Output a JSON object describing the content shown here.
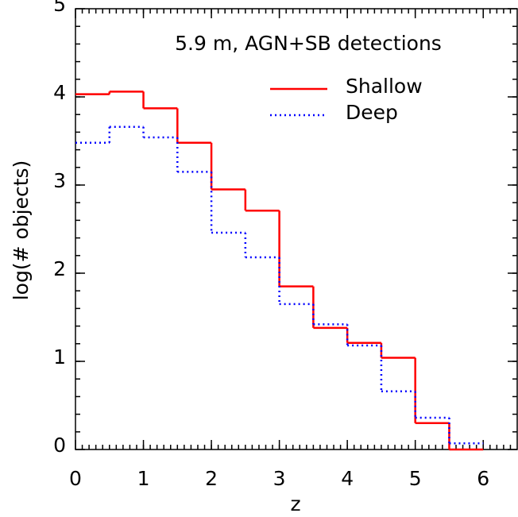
{
  "chart_data": {
    "type": "histogram",
    "annotation": "5.9 m, AGN+SB detections",
    "x_label": "z",
    "y_label": "log(# objects)",
    "bins": [
      0,
      0.5,
      1,
      1.5,
      2,
      2.5,
      3,
      3.5,
      4,
      4.5,
      5,
      5.5,
      6
    ],
    "series": [
      {
        "name": "Shallow",
        "color": "#ff0000",
        "dash": "solid",
        "values": [
          4.03,
          4.06,
          3.87,
          3.48,
          2.95,
          2.71,
          1.85,
          1.38,
          1.21,
          1.04,
          0.3,
          0.0
        ]
      },
      {
        "name": "Deep",
        "color": "#0000ff",
        "dash": "dotted",
        "values": [
          3.48,
          3.66,
          3.54,
          3.15,
          2.46,
          2.18,
          1.65,
          1.42,
          1.18,
          0.66,
          0.36,
          0.07
        ]
      }
    ],
    "xlim": [
      0,
      6.5
    ],
    "ylim": [
      0,
      5
    ],
    "xticks": [
      0,
      1,
      2,
      3,
      4,
      5,
      6
    ],
    "yticks": [
      0,
      1,
      2,
      3,
      4,
      5
    ],
    "xminor": 0.1,
    "yminor": 0.2
  }
}
